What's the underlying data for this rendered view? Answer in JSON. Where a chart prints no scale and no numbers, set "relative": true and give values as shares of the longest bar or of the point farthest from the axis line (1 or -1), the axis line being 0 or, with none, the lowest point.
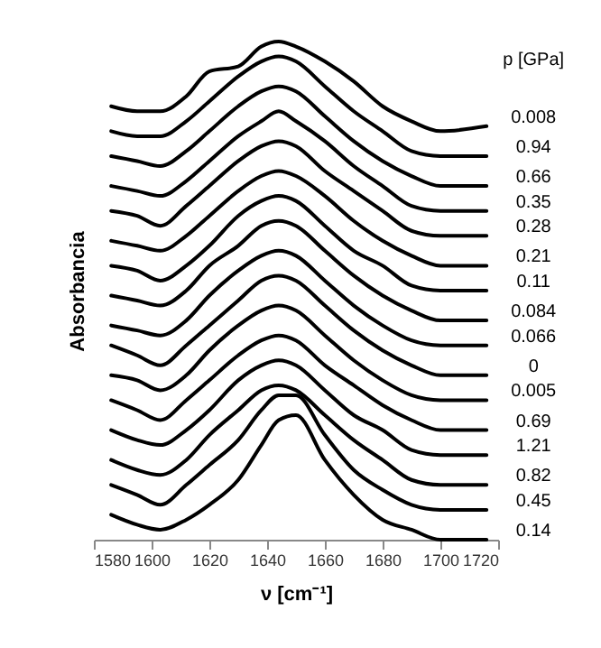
{
  "chart_data": {
    "type": "line",
    "relative": true,
    "xlabel": "ν [cm⁻¹]",
    "ylabel": "Absorbancia",
    "legend_title": "p [GPa]",
    "x": [
      1586,
      1595,
      1603,
      1612,
      1620,
      1630,
      1638,
      1644,
      1650,
      1660,
      1670,
      1680,
      1690,
      1700,
      1716
    ],
    "xlim": [
      1580,
      1720
    ],
    "xticks": [
      1580,
      1600,
      1620,
      1640,
      1660,
      1680,
      1700,
      1720
    ],
    "grid": false,
    "marker": "none",
    "line_style": "solid",
    "series": [
      {
        "name": "0.008",
        "color": "#000000",
        "values": [
          0.87,
          0.86,
          0.86,
          0.89,
          0.94,
          0.95,
          0.99,
          1,
          0.99,
          0.96,
          0.92,
          0.87,
          0.84,
          0.82,
          0.83
        ]
      },
      {
        "name": "0.94",
        "color": "#000000",
        "values": [
          0.82,
          0.81,
          0.81,
          0.84,
          0.88,
          0.93,
          0.96,
          0.97,
          0.96,
          0.91,
          0.86,
          0.82,
          0.78,
          0.77,
          0.77
        ]
      },
      {
        "name": "0.66",
        "color": "#000000",
        "values": [
          0.77,
          0.76,
          0.75,
          0.78,
          0.82,
          0.87,
          0.9,
          0.91,
          0.9,
          0.85,
          0.8,
          0.76,
          0.73,
          0.71,
          0.71
        ]
      },
      {
        "name": "0.35",
        "color": "#000000",
        "values": [
          0.71,
          0.7,
          0.69,
          0.72,
          0.76,
          0.81,
          0.84,
          0.86,
          0.84,
          0.8,
          0.75,
          0.71,
          0.67,
          0.66,
          0.66
        ]
      },
      {
        "name": "0.28",
        "color": "#000000",
        "values": [
          0.66,
          0.65,
          0.63,
          0.67,
          0.71,
          0.76,
          0.79,
          0.8,
          0.79,
          0.74,
          0.7,
          0.66,
          0.62,
          0.61,
          0.61
        ]
      },
      {
        "name": "0.21",
        "color": "#000000",
        "values": [
          0.6,
          0.59,
          0.58,
          0.61,
          0.65,
          0.7,
          0.73,
          0.74,
          0.73,
          0.69,
          0.64,
          0.6,
          0.57,
          0.55,
          0.55
        ]
      },
      {
        "name": "0.11",
        "color": "#000000",
        "values": [
          0.55,
          0.54,
          0.52,
          0.55,
          0.59,
          0.65,
          0.68,
          0.69,
          0.68,
          0.63,
          0.58,
          0.55,
          0.51,
          0.5,
          0.5
        ]
      },
      {
        "name": "0.084",
        "color": "#000000",
        "values": [
          0.49,
          0.48,
          0.47,
          0.5,
          0.55,
          0.59,
          0.63,
          0.64,
          0.63,
          0.58,
          0.53,
          0.49,
          0.46,
          0.44,
          0.44
        ]
      },
      {
        "name": "0.066",
        "color": "#000000",
        "values": [
          0.43,
          0.42,
          0.41,
          0.44,
          0.49,
          0.54,
          0.57,
          0.58,
          0.57,
          0.52,
          0.47,
          0.43,
          0.4,
          0.39,
          0.39
        ]
      },
      {
        "name": "0",
        "color": "#000000",
        "values": [
          0.39,
          0.37,
          0.35,
          0.39,
          0.43,
          0.48,
          0.52,
          0.53,
          0.52,
          0.47,
          0.42,
          0.38,
          0.35,
          0.33,
          0.33
        ]
      },
      {
        "name": "0.005",
        "color": "#000000",
        "values": [
          0.33,
          0.32,
          0.3,
          0.33,
          0.38,
          0.43,
          0.46,
          0.47,
          0.46,
          0.41,
          0.36,
          0.32,
          0.29,
          0.28,
          0.28
        ]
      },
      {
        "name": "0.69",
        "color": "#000000",
        "values": [
          0.28,
          0.26,
          0.24,
          0.28,
          0.32,
          0.37,
          0.4,
          0.41,
          0.4,
          0.35,
          0.31,
          0.27,
          0.24,
          0.22,
          0.22
        ]
      },
      {
        "name": "1.21",
        "color": "#000000",
        "values": [
          0.22,
          0.2,
          0.19,
          0.22,
          0.26,
          0.32,
          0.35,
          0.36,
          0.35,
          0.3,
          0.25,
          0.22,
          0.18,
          0.17,
          0.17
        ]
      },
      {
        "name": "0.82",
        "color": "#000000",
        "values": [
          0.16,
          0.14,
          0.13,
          0.16,
          0.21,
          0.26,
          0.3,
          0.31,
          0.3,
          0.25,
          0.2,
          0.16,
          0.12,
          0.11,
          0.11
        ]
      },
      {
        "name": "0.45",
        "color": "#000000",
        "values": [
          0.11,
          0.09,
          0.07,
          0.11,
          0.15,
          0.2,
          0.26,
          0.29,
          0.29,
          0.21,
          0.14,
          0.1,
          0.07,
          0.06,
          0.06
        ]
      },
      {
        "name": "0.14",
        "color": "#000000",
        "values": [
          0.05,
          0.03,
          0.02,
          0.04,
          0.07,
          0.12,
          0.19,
          0.24,
          0.25,
          0.16,
          0.09,
          0.04,
          0.02,
          0.0,
          0
        ]
      }
    ]
  }
}
